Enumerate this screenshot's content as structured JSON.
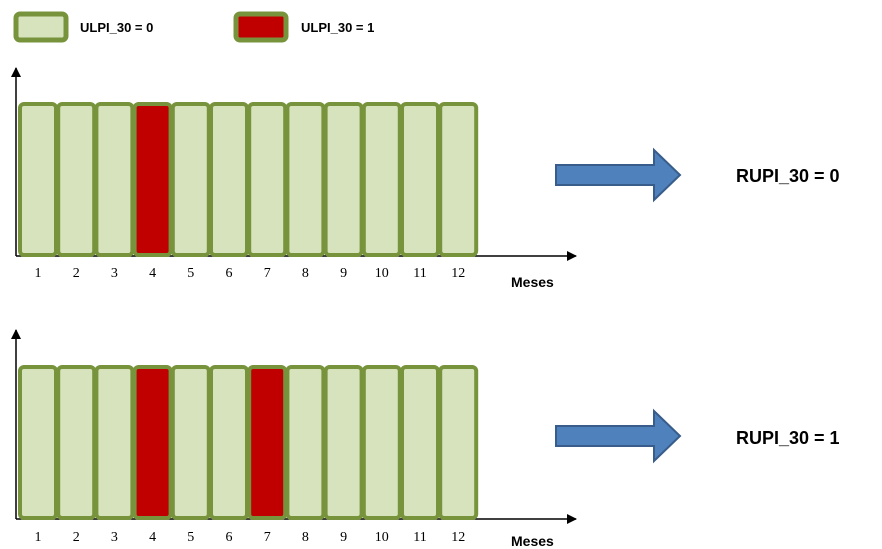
{
  "legend": [
    {
      "label": "ULPI_30 = 0",
      "fill": "#d6e3bc",
      "stroke": "#77933c"
    },
    {
      "label": "ULPI_30 = 1",
      "fill": "#c00000",
      "stroke": "#77933c"
    }
  ],
  "colors": {
    "zero_fill": "#d6e3bc",
    "one_fill": "#c00000",
    "bar_stroke": "#77933c",
    "arrow_fill": "#4f81bd",
    "arrow_stroke": "#385d8a",
    "axis": "#000000"
  },
  "panels": [
    {
      "months": [
        "1",
        "2",
        "3",
        "4",
        "5",
        "6",
        "7",
        "8",
        "9",
        "10",
        "11",
        "12"
      ],
      "values": [
        0,
        0,
        0,
        1,
        0,
        0,
        0,
        0,
        0,
        0,
        0,
        0
      ],
      "axis_label": "Meses",
      "result": "RUPI_30 = 0"
    },
    {
      "months": [
        "1",
        "2",
        "3",
        "4",
        "5",
        "6",
        "7",
        "8",
        "9",
        "10",
        "11",
        "12"
      ],
      "values": [
        0,
        0,
        0,
        1,
        0,
        0,
        1,
        0,
        0,
        0,
        0,
        0
      ],
      "axis_label": "Meses",
      "result": "RUPI_30 = 1"
    }
  ]
}
